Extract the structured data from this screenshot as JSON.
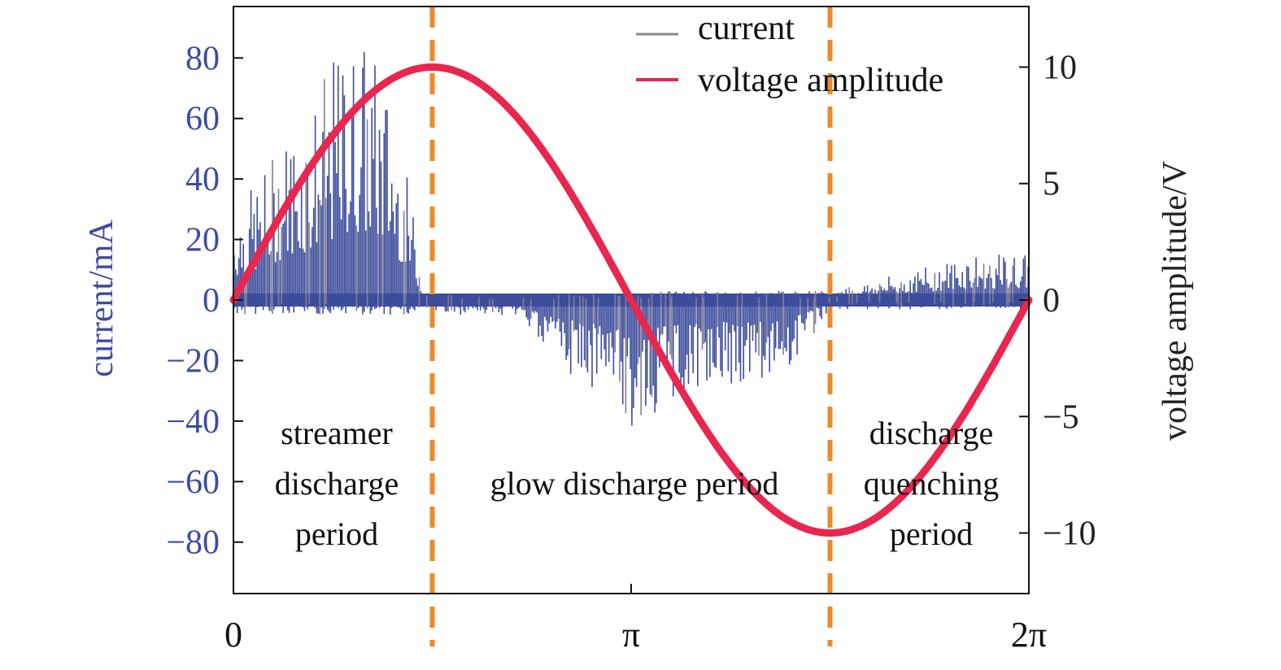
{
  "chart_data": {
    "type": "line",
    "x_axis": {
      "range": [
        0,
        6.283185307
      ],
      "ticks": [
        {
          "value": 0,
          "label": "0"
        },
        {
          "value": 3.141592654,
          "label": "π"
        },
        {
          "value": 6.283185307,
          "label": "2π"
        }
      ]
    },
    "y_left": {
      "label": "current/mA",
      "range": [
        -97,
        97
      ],
      "ticks": [
        80,
        60,
        40,
        20,
        0,
        -20,
        -40,
        -60,
        -80
      ],
      "tick_labels": [
        "80",
        "60",
        "40",
        "20",
        "0",
        "−20",
        "−40",
        "−60",
        "−80"
      ],
      "color": "#3d4d9c"
    },
    "y_right": {
      "label": "voltage amplitude/V",
      "range": [
        -12.6,
        12.6
      ],
      "ticks": [
        10,
        5,
        0,
        -5,
        -10
      ],
      "tick_labels": [
        "10",
        "5",
        "0",
        "−5",
        "−10"
      ]
    },
    "series": [
      {
        "name": "current",
        "axis": "left",
        "color": "#3d4d9c",
        "legend_color": "#8a8a8a",
        "style": "spikes",
        "envelope": {
          "x": [
            0.0,
            0.2,
            0.4,
            0.6,
            0.8,
            1.0,
            1.2,
            1.4,
            1.5,
            1.55,
            2.0,
            2.3,
            2.4,
            2.6,
            2.8,
            3.0,
            3.14,
            3.4,
            3.7,
            4.0,
            4.4,
            4.71,
            5.0,
            5.4,
            5.8,
            6.283
          ],
          "upper": [
            30,
            40,
            55,
            65,
            80,
            90,
            75,
            35,
            5,
            2,
            1,
            1,
            1,
            2,
            2,
            2,
            2,
            3,
            3,
            3,
            3,
            3,
            6,
            10,
            15,
            15
          ],
          "lower": [
            -5,
            -5,
            -5,
            -5,
            -5,
            -5,
            -5,
            -5,
            -5,
            -5,
            -5,
            -5,
            -15,
            -25,
            -30,
            -35,
            -45,
            -35,
            -30,
            -28,
            -25,
            -3,
            -3,
            -3,
            -3,
            -3
          ]
        }
      },
      {
        "name": "voltage amplitude",
        "axis": "right",
        "color": "#e8264e",
        "function": "10*sin(x)",
        "x": [
          0,
          0.3927,
          0.7854,
          1.1781,
          1.5708,
          1.9635,
          2.3562,
          2.7489,
          3.1416,
          3.5343,
          3.927,
          4.3197,
          4.7124,
          5.1051,
          5.4978,
          5.8905,
          6.2832
        ],
        "y": [
          0,
          3.83,
          7.07,
          9.24,
          10,
          9.24,
          7.07,
          3.83,
          0,
          -3.83,
          -7.07,
          -9.24,
          -10,
          -9.24,
          -7.07,
          -3.83,
          0
        ]
      }
    ],
    "vertical_lines": [
      {
        "x": 1.5708,
        "color": "#ee8a2a",
        "style": "dashed"
      },
      {
        "x": 4.7124,
        "color": "#ee8a2a",
        "style": "dashed"
      }
    ],
    "annotations": [
      {
        "id": "streamer",
        "lines": [
          "streamer",
          "discharge",
          "period"
        ]
      },
      {
        "id": "glow",
        "lines": [
          "glow discharge period"
        ]
      },
      {
        "id": "quenching",
        "lines": [
          "discharge",
          "quenching",
          "period"
        ]
      }
    ],
    "legend": {
      "placement": "top-right",
      "entries": [
        {
          "label": "current",
          "color": "#8a8a8a"
        },
        {
          "label": "voltage amplitude",
          "color": "#e8264e"
        }
      ]
    },
    "grid": false
  }
}
